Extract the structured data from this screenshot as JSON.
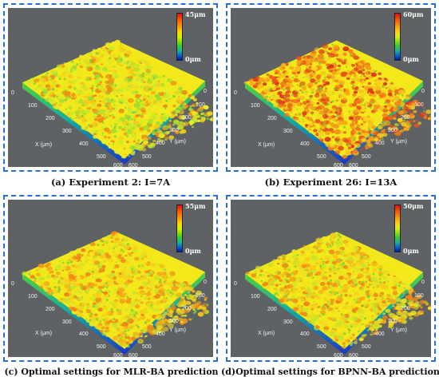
{
  "panels": [
    {
      "id": "a",
      "legend_max": "45μm",
      "legend_min": "0μm",
      "caption": "(a) Experiment 2: I=7A",
      "surface_tone": "greenish-yellow",
      "x_title": "X (μm)",
      "y_title": "Y (μm)",
      "x_ticks": [
        "0",
        "100",
        "200",
        "300",
        "400",
        "500",
        "600"
      ],
      "y_ticks": [
        "0",
        "100",
        "200",
        "300",
        "400",
        "500",
        "600"
      ]
    },
    {
      "id": "b",
      "legend_max": "60μm",
      "legend_min": "0μm",
      "caption": "(b) Experiment 26: I=13A",
      "surface_tone": "orange-red",
      "x_title": "X (μm)",
      "y_title": "Y (μm)",
      "x_ticks": [
        "0",
        "100",
        "200",
        "300",
        "400",
        "500",
        "600"
      ],
      "y_ticks": [
        "0",
        "100",
        "200",
        "300",
        "400",
        "500",
        "600"
      ]
    },
    {
      "id": "c",
      "legend_max": "55μm",
      "legend_min": "0μm",
      "caption": "(c) Optimal settings for MLR-BA prediction",
      "surface_tone": "yellow-orange",
      "x_title": "X (μm)",
      "y_title": "Y (μm)",
      "x_ticks": [
        "0",
        "100",
        "200",
        "300",
        "400",
        "500",
        "600"
      ],
      "y_ticks": [
        "0",
        "100",
        "200",
        "300",
        "400",
        "500",
        "600"
      ]
    },
    {
      "id": "d",
      "legend_max": "50μm",
      "legend_min": "0μm",
      "caption": "(d)Optimal settings for BPNN-BA prediction",
      "surface_tone": "yellow-orange",
      "x_title": "X (μm)",
      "y_title": "Y (μm)",
      "x_ticks": [
        "0",
        "100",
        "200",
        "300",
        "400",
        "500",
        "600"
      ],
      "y_ticks": [
        "0",
        "100",
        "200",
        "300",
        "400",
        "500",
        "600"
      ]
    }
  ],
  "colors": {
    "frame_border": "#2a6fd6",
    "viewport_bg": "#5f6264",
    "surface_top": "#f2e81a",
    "surface_green": "#53d13a",
    "surface_blue": "#1b36c9"
  }
}
